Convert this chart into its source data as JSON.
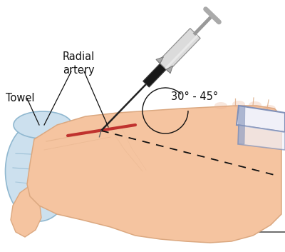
{
  "bg_color": "#ffffff",
  "skin_color": "#f5c4a0",
  "skin_shadow": "#dba880",
  "skin_mid": "#ebb090",
  "skin_light": "#fddfc0",
  "towel_color": "#cce0ee",
  "towel_outline": "#90b8d0",
  "towel_shadow": "#a8ccdd",
  "needle_dark": "#222222",
  "needle_mid": "#666666",
  "needle_light": "#aaaaaa",
  "tape_white": "#f0f0f8",
  "tape_outline": "#8090b8",
  "dashed_color": "#111111",
  "artery_color": "#bb2222",
  "angle_text": "30° - 45°",
  "label_radial": "Radial\nartery",
  "label_towel": "Towel",
  "line_color": "#444444",
  "label_fontsize": 10.5
}
